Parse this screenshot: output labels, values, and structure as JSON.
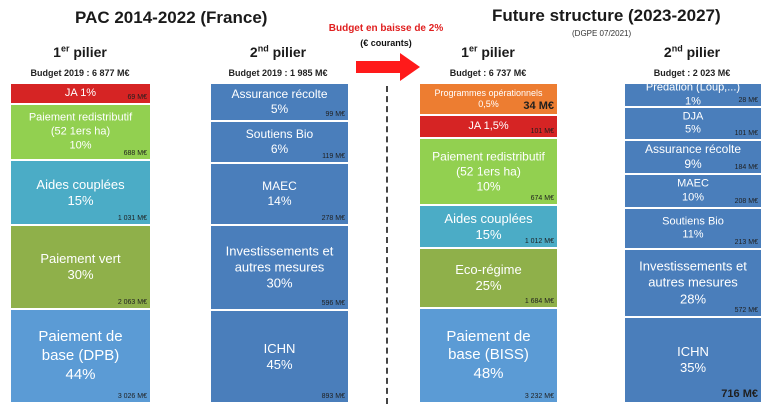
{
  "header": {
    "left_title": "PAC 2014-2022 (France)",
    "right_title": "Future structure (2023-2027)",
    "right_subtitle": "(DGPE 07/2021)",
    "arrow_label": "Budget en baisse de 2%",
    "arrow_sublabel": "(€ courants)"
  },
  "columns": [
    {
      "title": "1er pilier",
      "budget": "Budget 2019 : 6 877 M€",
      "segments": [
        {
          "label": [
            "JA 1%"
          ],
          "amount": "69 M€",
          "color": "#d62424"
        },
        {
          "label": [
            "Paiement redistributif",
            "(52 1ers ha)",
            "10%"
          ],
          "amount": "688 M€",
          "color": "#92d050"
        },
        {
          "label": [
            "Aides couplées",
            "15%"
          ],
          "amount": "1 031 M€",
          "color": "#4bacc6"
        },
        {
          "label": [
            "Paiement vert",
            "30%"
          ],
          "amount": "2 063 M€",
          "color": "#8fb04a"
        },
        {
          "label": [
            "Paiement de",
            "base (DPB)",
            "44%"
          ],
          "amount": "3 026 M€",
          "color": "#5b9bd5"
        }
      ]
    },
    {
      "title": "2nd pilier",
      "budget": "Budget 2019 : 1 985 M€",
      "segments": [
        {
          "label": [
            "Assurance récolte",
            "5%"
          ],
          "amount": "99 M€",
          "color": "#4a7ebb"
        },
        {
          "label": [
            "Soutiens Bio",
            "6%"
          ],
          "amount": "119 M€",
          "color": "#4a7ebb"
        },
        {
          "label": [
            "MAEC",
            "14%"
          ],
          "amount": "278 M€",
          "color": "#4a7ebb"
        },
        {
          "label": [
            "Investissements et",
            "autres mesures",
            "30%"
          ],
          "amount": "596 M€",
          "color": "#4a7ebb"
        },
        {
          "label": [
            "ICHN",
            "45%"
          ],
          "amount": "893 M€",
          "color": "#4a7ebb"
        }
      ]
    },
    {
      "title": "1er pilier",
      "budget": "Budget : 6 737 M€",
      "segments": [
        {
          "label": [
            "Programmes opérationnels",
            "0,5%"
          ],
          "amount": "34 M€",
          "color": "#ed7d31"
        },
        {
          "label": [
            "JA 1,5%"
          ],
          "amount": "101 M€",
          "color": "#d62424"
        },
        {
          "label": [
            "Paiement redistributif",
            "(52 1ers ha)",
            "10%"
          ],
          "amount": "674 M€",
          "color": "#92d050"
        },
        {
          "label": [
            "Aides couplées",
            "15%"
          ],
          "amount": "1 012 M€",
          "color": "#4bacc6"
        },
        {
          "label": [
            "Eco-régime",
            "25%"
          ],
          "amount": "1 684 M€",
          "color": "#8fb04a"
        },
        {
          "label": [
            "Paiement de",
            "base (BISS)",
            "48%"
          ],
          "amount": "3 232 M€",
          "color": "#5b9bd5"
        }
      ]
    },
    {
      "title": "2nd pilier",
      "budget": "Budget : 2 023 M€",
      "segments": [
        {
          "label": [
            "Prédation (Loup,...)",
            "1%"
          ],
          "amount": "28 M€",
          "color": "#4a7ebb"
        },
        {
          "label": [
            "DJA",
            "5%"
          ],
          "amount": "101 M€",
          "color": "#4a7ebb"
        },
        {
          "label": [
            "Assurance récolte",
            "9%"
          ],
          "amount": "184 M€",
          "color": "#4a7ebb"
        },
        {
          "label": [
            "MAEC",
            "10%"
          ],
          "amount": "208 M€",
          "color": "#4a7ebb"
        },
        {
          "label": [
            "Soutiens Bio",
            "11%"
          ],
          "amount": "213 M€",
          "color": "#4a7ebb"
        },
        {
          "label": [
            "Investissements et",
            "autres mesures",
            "28%"
          ],
          "amount": "572 M€",
          "color": "#4a7ebb"
        },
        {
          "label": [
            "ICHN",
            "35%"
          ],
          "amount": "716 M€",
          "color": "#4a7ebb"
        }
      ]
    }
  ]
}
